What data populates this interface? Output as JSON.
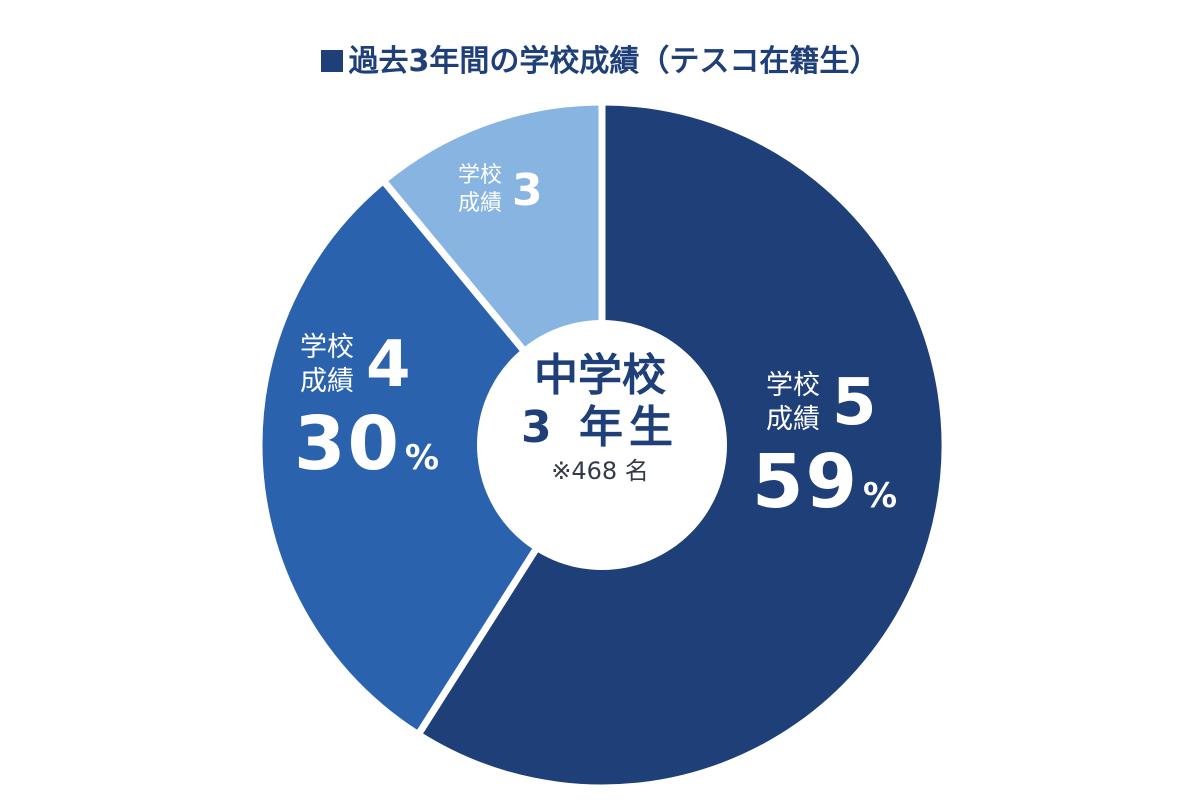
{
  "chart_data": {
    "type": "pie",
    "title": "過去3年間の学校成績（テスコ在籍生）",
    "center_label": {
      "line1": "中学校",
      "line2": "3 年生",
      "note": "※468 名"
    },
    "slices": [
      {
        "name": "学校成績",
        "grade": "5",
        "value": 59,
        "value_text": "59",
        "unit": "%",
        "color": "#1e3f78"
      },
      {
        "name": "学校成績",
        "grade": "4",
        "value": 30,
        "value_text": "30",
        "unit": "%",
        "color": "#2a62ae"
      },
      {
        "name": "学校成績",
        "grade": "3",
        "value": 11,
        "value_text": "",
        "unit": "",
        "color": "#88b4e2"
      }
    ]
  }
}
